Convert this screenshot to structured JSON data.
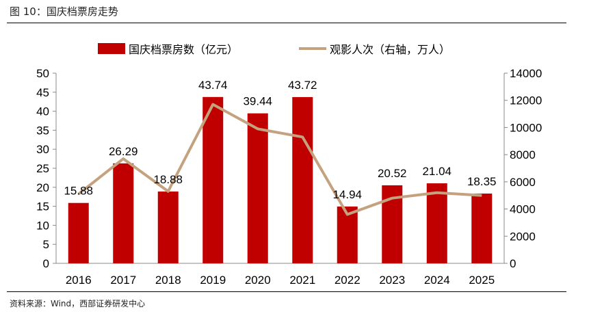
{
  "title": "图 10：国庆档票房走势",
  "source": "资料来源：Wind，西部证券研发中心",
  "chart_data": {
    "type": "bar+line",
    "categories": [
      "2016",
      "2017",
      "2018",
      "2019",
      "2020",
      "2021",
      "2022",
      "2023",
      "2024",
      "2025"
    ],
    "series": [
      {
        "name": "国庆档票房数（亿元）",
        "type": "bar",
        "axis": "left",
        "color": "#C00000",
        "values": [
          15.88,
          26.29,
          18.88,
          43.74,
          39.44,
          43.72,
          14.94,
          20.52,
          21.04,
          18.35
        ],
        "labels": [
          "15.88",
          "26.29",
          "18.88",
          "43.74",
          "39.44",
          "43.72",
          "14.94",
          "20.52",
          "21.04",
          "18.35"
        ]
      },
      {
        "name": "观影人次（右轴，万人）",
        "type": "line",
        "axis": "right",
        "color": "#C4A27F",
        "values": [
          5100,
          7700,
          5300,
          11700,
          9900,
          9300,
          3600,
          4800,
          5200,
          5000
        ]
      }
    ],
    "ylim_left": [
      0,
      50
    ],
    "yticks_left": [
      "0",
      "5",
      "10",
      "15",
      "20",
      "25",
      "30",
      "35",
      "40",
      "45",
      "50"
    ],
    "ylim_right": [
      0,
      14000
    ],
    "yticks_right": [
      "0",
      "2000",
      "4000",
      "6000",
      "8000",
      "10000",
      "12000",
      "14000"
    ],
    "grid": false,
    "legend": "top"
  }
}
